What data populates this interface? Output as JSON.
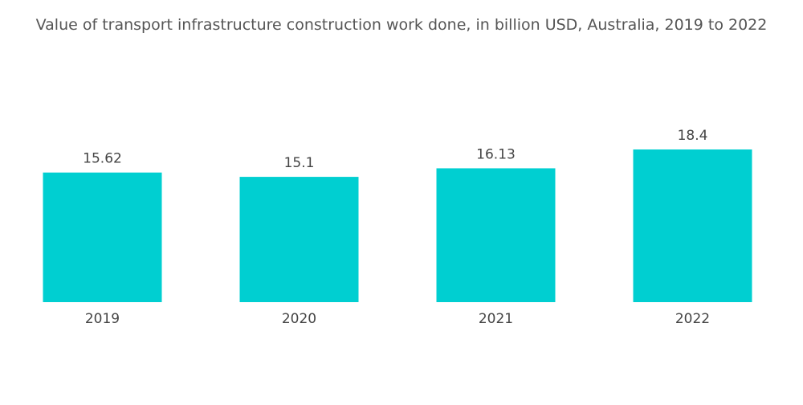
{
  "chart_data": {
    "type": "bar",
    "title": "Value of transport infrastructure construction work done, in billion USD, Australia, 2019 to 2022",
    "categories": [
      "2019",
      "2020",
      "2021",
      "2022"
    ],
    "values": [
      15.62,
      15.1,
      16.13,
      18.4
    ],
    "color": "#00cfd1"
  }
}
